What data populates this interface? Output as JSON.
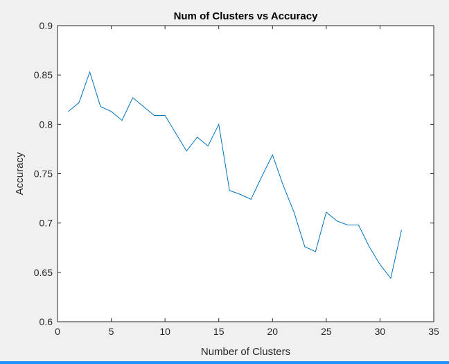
{
  "chart_data": {
    "type": "line",
    "title": "Num of Clusters vs Accuracy",
    "xlabel": "Number of Clusters",
    "ylabel": "Accuracy",
    "xlim": [
      0,
      35
    ],
    "ylim": [
      0.6,
      0.9
    ],
    "xticks": [
      0,
      5,
      10,
      15,
      20,
      25,
      30,
      35
    ],
    "yticks": [
      0.6,
      0.65,
      0.7,
      0.75,
      0.8,
      0.85,
      0.9
    ],
    "xtick_labels": [
      "0",
      "5",
      "10",
      "15",
      "20",
      "25",
      "30",
      "35"
    ],
    "ytick_labels": [
      "0.6",
      "0.65",
      "0.7",
      "0.75",
      "0.8",
      "0.85",
      "0.9"
    ],
    "grid": false,
    "series": [
      {
        "color": "#0072bd",
        "x": [
          1,
          2,
          3,
          4,
          5,
          6,
          7,
          8,
          9,
          10,
          11,
          12,
          13,
          14,
          15,
          16,
          17,
          18,
          19,
          20,
          21,
          22,
          23,
          24,
          25,
          26,
          27,
          28,
          29,
          30,
          31,
          32
        ],
        "y": [
          0.813,
          0.822,
          0.853,
          0.818,
          0.813,
          0.804,
          0.827,
          0.818,
          0.809,
          0.809,
          0.791,
          0.773,
          0.787,
          0.778,
          0.8,
          0.733,
          0.729,
          0.724,
          0.747,
          0.769,
          0.738,
          0.711,
          0.676,
          0.671,
          0.711,
          0.702,
          0.698,
          0.698,
          0.676,
          0.658,
          0.644,
          0.693
        ]
      }
    ]
  }
}
